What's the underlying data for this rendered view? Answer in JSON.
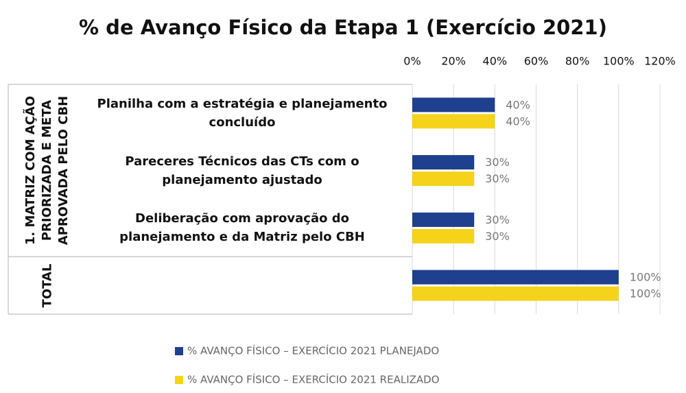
{
  "chart_data": {
    "type": "bar",
    "orientation": "horizontal",
    "title": "% de Avanço Físico da Etapa 1 (Exercício 2021)",
    "categories": [
      "Planilha com a estratégia e planejamento concluído",
      "Pareceres Técnicos das CTs com o planejamento ajustado",
      "Deliberação com aprovação do planejamento e da Matriz pelo CBH",
      null
    ],
    "groups": [
      {
        "label": "1. MATRIZ COM AÇÃO PRIORIZADA E META APROVADA PELO CBH",
        "size": 3
      },
      {
        "label": "TOTAL",
        "size": 1
      }
    ],
    "series": [
      {
        "name": "% AVANÇO FÍSICO – EXERCÍCIO 2021 PLANEJADO",
        "color": "#1f3f8f",
        "values": [
          40,
          30,
          30,
          100
        ],
        "value_labels": [
          "40%",
          "30%",
          "30%",
          "100%"
        ]
      },
      {
        "name": "% AVANÇO FÍSICO – EXERCÍCIO 2021 REALIZADO",
        "color": "#f4d31a",
        "values": [
          40,
          30,
          30,
          100
        ],
        "value_labels": [
          "40%",
          "30%",
          "30%",
          "100%"
        ]
      }
    ],
    "xlim": [
      0,
      120
    ],
    "xticks": [
      {
        "value": 0,
        "label": "0%"
      },
      {
        "value": 20,
        "label": "20%"
      },
      {
        "value": 40,
        "label": "40%"
      },
      {
        "value": 60,
        "label": "60%"
      },
      {
        "value": 80,
        "label": "80%"
      },
      {
        "value": 100,
        "label": "100%"
      },
      {
        "value": 120,
        "label": "120%"
      }
    ],
    "grid": true,
    "legend": "bottom"
  }
}
